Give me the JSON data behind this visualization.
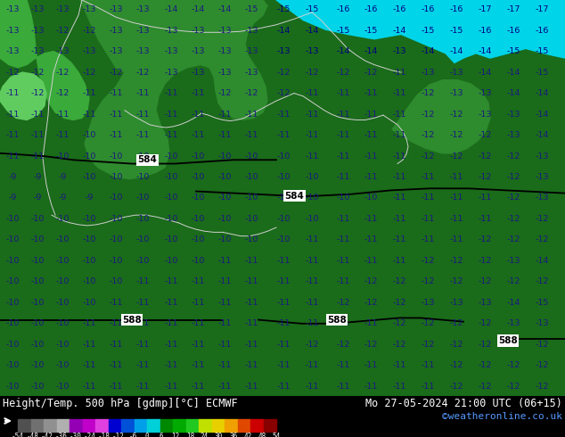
{
  "title_left": "Height/Temp. 500 hPa [gdmp][°C] ECMWF",
  "title_right": "Mo 27-05-2024 21:00 UTC (06+15)",
  "subtitle_right": "©weatheronline.co.uk",
  "colorbar_ticks": [
    "-54",
    "-48",
    "-42",
    "-36",
    "-30",
    "-24",
    "-18",
    "-12",
    "-6",
    "0",
    "6",
    "12",
    "18",
    "24",
    "30",
    "36",
    "42",
    "48",
    "54"
  ],
  "colorbar_colors": [
    "#606060",
    "#787878",
    "#909090",
    "#a8a8a8",
    "#c0c0c0",
    "#9400b4",
    "#c000c8",
    "#e040e0",
    "#0000d0",
    "#0050d8",
    "#00a0e8",
    "#00d0d8",
    "#00b8a0",
    "#008800",
    "#00a800",
    "#20c820",
    "#60e040",
    "#d0e000",
    "#f0d000",
    "#f0a000",
    "#e05000",
    "#d00000",
    "#900000"
  ],
  "bg_map_dark_green": "#1a6b1a",
  "bg_map_mid_green": "#2e8b2e",
  "bg_map_light_green": "#4caf4c",
  "bg_map_bright_green": "#90ee90",
  "bg_sea_cyan": "#00bcd4",
  "figsize": [
    6.34,
    4.9
  ],
  "dpi": 100
}
